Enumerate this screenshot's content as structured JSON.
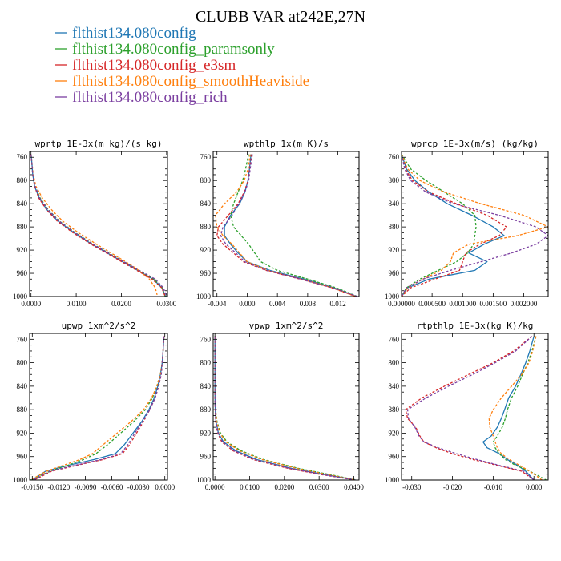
{
  "figure_title": "CLUBB VAR at242E,27N",
  "colors": {
    "blue": "#1f77b4",
    "green": "#2ca02c",
    "red": "#d62728",
    "orange": "#ff7f0e",
    "purple": "#7b3fa0"
  },
  "chart_data": [
    {
      "type": "line",
      "title": "wprtp  1E-3x(m kg)/(s kg)",
      "x_ticks": [
        "0.0000",
        "0.0100",
        "0.0200",
        "0.0300"
      ],
      "x_tick_values": [
        0.0,
        0.01,
        0.02,
        0.03
      ],
      "xlim": [
        -0.0003,
        0.0302
      ],
      "y_ticks": [
        "760",
        "800",
        "840",
        "880",
        "920",
        "960",
        "1000"
      ],
      "ylim": [
        1000,
        750
      ],
      "y": [
        755,
        770,
        790,
        810,
        830,
        850,
        870,
        890,
        910,
        930,
        950,
        970,
        985,
        1000
      ],
      "series": [
        {
          "name": "flthist134.080config",
          "color": "blue",
          "dash": "solid",
          "values": [
            0.0,
            0.0002,
            0.0004,
            0.0008,
            0.0018,
            0.0035,
            0.006,
            0.0095,
            0.0135,
            0.018,
            0.0225,
            0.027,
            0.029,
            0.0298
          ]
        },
        {
          "name": "flthist134.080config_paramsonly",
          "color": "green",
          "dash": "dashed",
          "values": [
            0.0,
            0.0002,
            0.0004,
            0.0009,
            0.002,
            0.0038,
            0.0063,
            0.0098,
            0.0138,
            0.0183,
            0.0228,
            0.0272,
            0.029,
            0.0297
          ]
        },
        {
          "name": "flthist134.080config_e3sm",
          "color": "red",
          "dash": "dashed",
          "values": [
            0.0,
            0.0002,
            0.0004,
            0.0008,
            0.0017,
            0.0034,
            0.0058,
            0.0093,
            0.0133,
            0.0178,
            0.0223,
            0.0268,
            0.0289,
            0.0297
          ]
        },
        {
          "name": "flthist134.080config_smoothHeaviside",
          "color": "orange",
          "dash": "dashed",
          "values": [
            0.0,
            0.0002,
            0.0005,
            0.0011,
            0.0025,
            0.0045,
            0.007,
            0.0105,
            0.0145,
            0.0188,
            0.023,
            0.0262,
            0.0275,
            0.028
          ]
        },
        {
          "name": "flthist134.080config_rich",
          "color": "purple",
          "dash": "dashed",
          "values": [
            0.0,
            0.0002,
            0.0004,
            0.0009,
            0.0019,
            0.0037,
            0.0062,
            0.0097,
            0.0137,
            0.0182,
            0.0228,
            0.0275,
            0.0293,
            0.03
          ]
        }
      ]
    },
    {
      "type": "line",
      "title": "wpthlp  1x(m K)/s",
      "x_ticks": [
        "-0.004",
        "0.000",
        "0.004",
        "0.008",
        "0.012"
      ],
      "x_tick_values": [
        -0.004,
        0.0,
        0.004,
        0.008,
        0.012
      ],
      "xlim": [
        -0.0045,
        0.0148
      ],
      "y_ticks": [
        "760",
        "800",
        "840",
        "880",
        "920",
        "960",
        "1000"
      ],
      "ylim": [
        1000,
        750
      ],
      "y": [
        755,
        780,
        800,
        820,
        840,
        860,
        880,
        895,
        910,
        925,
        940,
        955,
        970,
        985,
        1000
      ],
      "series": [
        {
          "name": "flthist134.080config",
          "color": "blue",
          "dash": "solid",
          "values": [
            0.0005,
            0.0003,
            0.0001,
            -0.0003,
            -0.001,
            -0.0022,
            -0.003,
            -0.003,
            -0.0022,
            -0.0012,
            0.0,
            0.003,
            0.0075,
            0.0115,
            0.0145
          ]
        },
        {
          "name": "flthist134.080config_paramsonly",
          "color": "green",
          "dash": "dashed",
          "values": [
            0.0002,
            -0.0002,
            -0.0006,
            -0.0012,
            -0.0018,
            -0.0022,
            -0.0018,
            -0.0008,
            0.0002,
            0.001,
            0.0018,
            0.004,
            0.008,
            0.0118,
            0.0146
          ]
        },
        {
          "name": "flthist134.080config_e3sm",
          "color": "red",
          "dash": "dashed",
          "values": [
            0.0006,
            0.0003,
            0.0001,
            -0.0004,
            -0.0012,
            -0.0025,
            -0.0038,
            -0.004,
            -0.0032,
            -0.0018,
            -0.0005,
            0.0025,
            0.007,
            0.0112,
            0.0144
          ]
        },
        {
          "name": "flthist134.080config_smoothHeaviside",
          "color": "orange",
          "dash": "dashed",
          "values": [
            0.0004,
            0.0001,
            -0.0004,
            -0.0014,
            -0.003,
            -0.0042,
            -0.004,
            -0.0032,
            -0.002,
            -0.001,
            0.0,
            0.0028,
            0.0072,
            0.0113,
            0.0144
          ]
        },
        {
          "name": "flthist134.080config_rich",
          "color": "purple",
          "dash": "dashed",
          "values": [
            0.0007,
            0.0004,
            0.0002,
            -0.0003,
            -0.0011,
            -0.002,
            -0.0032,
            -0.0035,
            -0.0028,
            -0.0015,
            -0.0003,
            0.0026,
            0.0071,
            0.0113,
            0.0146
          ]
        }
      ]
    },
    {
      "type": "line",
      "title": "wprcp  1E-3x(m/s) (kg/kg)",
      "x_ticks": [
        "0.000000",
        "0.000500",
        "0.001000",
        "0.001500",
        "0.002000"
      ],
      "x_tick_values": [
        0.0,
        0.0005,
        0.001,
        0.0015,
        0.002
      ],
      "xlim": [
        0.0,
        0.0024
      ],
      "y_ticks": [
        "760",
        "800",
        "840",
        "880",
        "920",
        "960",
        "1000"
      ],
      "ylim": [
        1000,
        750
      ],
      "y": [
        755,
        780,
        800,
        820,
        840,
        860,
        880,
        895,
        910,
        925,
        940,
        955,
        970,
        985,
        1000
      ],
      "series": [
        {
          "name": "flthist134.080config",
          "color": "blue",
          "dash": "solid",
          "values": [
            0.0,
            8e-05,
            0.00022,
            0.00045,
            0.00075,
            0.00115,
            0.0015,
            0.00168,
            0.00135,
            0.0011,
            0.0014,
            0.0012,
            0.00045,
            0.0001,
            0.0
          ]
        },
        {
          "name": "flthist134.080config_paramsonly",
          "color": "green",
          "dash": "dashed",
          "values": [
            0.0,
            0.00015,
            0.0004,
            0.0007,
            0.001,
            0.0012,
            0.00122,
            0.0012,
            0.00118,
            0.00108,
            0.0009,
            0.0006,
            0.0003,
            8e-05,
            0.0
          ]
        },
        {
          "name": "flthist134.080config_e3sm",
          "color": "red",
          "dash": "dashed",
          "values": [
            0.0,
            6e-05,
            0.00018,
            0.00045,
            0.0009,
            0.0014,
            0.00172,
            0.0016,
            0.00128,
            0.00105,
            0.001,
            0.00095,
            0.00055,
            0.00015,
            0.0
          ]
        },
        {
          "name": "flthist134.080config_smoothHeaviside",
          "color": "orange",
          "dash": "dashed",
          "values": [
            0.0,
            0.0001,
            0.0003,
            0.0007,
            0.0013,
            0.002,
            0.0024,
            0.0019,
            0.0011,
            0.00085,
            0.0008,
            0.00065,
            0.00035,
            0.0001,
            0.0
          ]
        },
        {
          "name": "flthist134.080config_rich",
          "color": "purple",
          "dash": "dashed",
          "values": [
            0.0,
            5e-05,
            0.00015,
            0.0004,
            0.00085,
            0.0016,
            0.0022,
            0.0024,
            0.0022,
            0.0018,
            0.0013,
            0.0008,
            0.00035,
            8e-05,
            0.0
          ]
        }
      ]
    },
    {
      "type": "line",
      "title": "upwp  1xm^2/s^2",
      "x_ticks": [
        "-0.0150",
        "-0.0120",
        "-0.0090",
        "-0.0060",
        "-0.0030",
        "0.0000"
      ],
      "x_tick_values": [
        -0.015,
        -0.012,
        -0.009,
        -0.006,
        -0.003,
        0.0
      ],
      "xlim": [
        -0.0153,
        0.0003
      ],
      "y_ticks": [
        "760",
        "800",
        "840",
        "880",
        "920",
        "960",
        "1000"
      ],
      "ylim": [
        1000,
        750
      ],
      "y": [
        755,
        780,
        800,
        820,
        840,
        860,
        880,
        900,
        920,
        940,
        955,
        965,
        975,
        985,
        1000
      ],
      "series": [
        {
          "name": "flthist134.080config",
          "color": "blue",
          "dash": "solid",
          "values": [
            -0.0001,
            -0.0002,
            -0.0003,
            -0.0005,
            -0.0008,
            -0.0012,
            -0.0018,
            -0.0026,
            -0.0036,
            -0.0046,
            -0.0056,
            -0.008,
            -0.011,
            -0.0135,
            -0.015
          ]
        },
        {
          "name": "flthist134.080config_paramsonly",
          "color": "green",
          "dash": "dashed",
          "values": [
            -0.0001,
            -0.0002,
            -0.0003,
            -0.0005,
            -0.0009,
            -0.0014,
            -0.0022,
            -0.0035,
            -0.005,
            -0.0065,
            -0.0078,
            -0.0092,
            -0.011,
            -0.013,
            -0.0152
          ]
        },
        {
          "name": "flthist134.080config_e3sm",
          "color": "red",
          "dash": "dashed",
          "values": [
            -0.0001,
            -0.0002,
            -0.0003,
            -0.0004,
            -0.0007,
            -0.0011,
            -0.0017,
            -0.0024,
            -0.0032,
            -0.004,
            -0.0048,
            -0.007,
            -0.01,
            -0.0128,
            -0.0148
          ]
        },
        {
          "name": "flthist134.080config_smoothHeaviside",
          "color": "orange",
          "dash": "dashed",
          "values": [
            -0.0001,
            -0.0002,
            -0.0003,
            -0.0005,
            -0.0009,
            -0.0015,
            -0.0024,
            -0.0038,
            -0.0054,
            -0.007,
            -0.0082,
            -0.0096,
            -0.0115,
            -0.0134,
            -0.0152
          ]
        },
        {
          "name": "flthist134.080config_rich",
          "color": "purple",
          "dash": "dashed",
          "values": [
            -0.0001,
            -0.0002,
            -0.0003,
            -0.0004,
            -0.0007,
            -0.0011,
            -0.0017,
            -0.0025,
            -0.0034,
            -0.0042,
            -0.005,
            -0.0072,
            -0.0102,
            -0.013,
            -0.0149
          ]
        }
      ]
    },
    {
      "type": "line",
      "title": "vpwp  1xm^2/s^2",
      "x_ticks": [
        "0.0000",
        "0.0100",
        "0.0200",
        "0.0300",
        "0.0400"
      ],
      "x_tick_values": [
        0.0,
        0.01,
        0.02,
        0.03,
        0.04
      ],
      "xlim": [
        -0.0005,
        0.0415
      ],
      "y_ticks": [
        "760",
        "800",
        "840",
        "880",
        "920",
        "960",
        "1000"
      ],
      "ylim": [
        1000,
        750
      ],
      "y": [
        755,
        800,
        850,
        880,
        900,
        920,
        935,
        950,
        965,
        980,
        990,
        1000
      ],
      "series": [
        {
          "name": "flthist134.080config",
          "color": "blue",
          "dash": "solid",
          "values": [
            0.0,
            0.0,
            0.0,
            0.0001,
            0.0003,
            0.001,
            0.0025,
            0.006,
            0.012,
            0.022,
            0.031,
            0.0405
          ]
        },
        {
          "name": "flthist134.080config_paramsonly",
          "color": "green",
          "dash": "dashed",
          "values": [
            0.0,
            0.0,
            0.0,
            0.0002,
            0.0006,
            0.0016,
            0.0035,
            0.0075,
            0.014,
            0.024,
            0.0325,
            0.0408
          ]
        },
        {
          "name": "flthist134.080config_e3sm",
          "color": "red",
          "dash": "dashed",
          "values": [
            0.0,
            0.0,
            0.0,
            0.0001,
            0.0002,
            0.0008,
            0.002,
            0.0052,
            0.011,
            0.021,
            0.03,
            0.0402
          ]
        },
        {
          "name": "flthist134.080config_smoothHeaviside",
          "color": "orange",
          "dash": "dashed",
          "values": [
            0.0,
            0.0,
            0.0,
            0.0002,
            0.0005,
            0.0014,
            0.0032,
            0.007,
            0.0135,
            0.0235,
            0.032,
            0.0406
          ]
        },
        {
          "name": "flthist134.080config_rich",
          "color": "purple",
          "dash": "dashed",
          "values": [
            0.0,
            0.0,
            0.0,
            0.0001,
            0.0003,
            0.0009,
            0.0022,
            0.0055,
            0.0115,
            0.0215,
            0.0305,
            0.0404
          ]
        }
      ]
    },
    {
      "type": "line",
      "title": "rtpthlp  1E-3x(kg K)/kg",
      "x_ticks": [
        "-0.030",
        "-0.020",
        "-0.010",
        "0.000"
      ],
      "x_tick_values": [
        -0.03,
        -0.02,
        -0.01,
        0.0
      ],
      "xlim": [
        -0.0325,
        0.0035
      ],
      "y_ticks": [
        "760",
        "800",
        "840",
        "880",
        "920",
        "960",
        "1000"
      ],
      "ylim": [
        1000,
        750
      ],
      "y": [
        755,
        780,
        800,
        820,
        840,
        860,
        880,
        895,
        910,
        925,
        935,
        945,
        955,
        965,
        975,
        985,
        1000
      ],
      "series": [
        {
          "name": "flthist134.080config",
          "color": "blue",
          "dash": "solid",
          "values": [
            0.0,
            -0.001,
            -0.002,
            -0.0032,
            -0.0045,
            -0.0062,
            -0.0072,
            -0.008,
            -0.009,
            -0.0105,
            -0.0125,
            -0.0115,
            -0.0085,
            -0.0065,
            -0.004,
            -0.002,
            0.0
          ]
        },
        {
          "name": "flthist134.080config_paramsonly",
          "color": "green",
          "dash": "dashed",
          "values": [
            0.0005,
            -0.0005,
            -0.0015,
            -0.0028,
            -0.004,
            -0.0055,
            -0.0065,
            -0.007,
            -0.0078,
            -0.009,
            -0.01,
            -0.0095,
            -0.0085,
            -0.007,
            -0.0045,
            -0.001,
            0.003
          ]
        },
        {
          "name": "flthist134.080config_e3sm",
          "color": "red",
          "dash": "dashed",
          "values": [
            -0.0005,
            -0.005,
            -0.01,
            -0.016,
            -0.022,
            -0.0275,
            -0.0315,
            -0.031,
            -0.029,
            -0.028,
            -0.027,
            -0.024,
            -0.02,
            -0.015,
            -0.009,
            -0.003,
            0.0
          ]
        },
        {
          "name": "flthist134.080config_smoothHeaviside",
          "color": "orange",
          "dash": "dashed",
          "values": [
            0.0005,
            -0.0003,
            -0.0012,
            -0.003,
            -0.0055,
            -0.008,
            -0.01,
            -0.011,
            -0.0108,
            -0.01,
            -0.0095,
            -0.009,
            -0.008,
            -0.006,
            -0.0035,
            -0.001,
            0.002
          ]
        },
        {
          "name": "flthist134.080config_rich",
          "color": "purple",
          "dash": "dashed",
          "values": [
            -0.0005,
            -0.0045,
            -0.0095,
            -0.015,
            -0.021,
            -0.0265,
            -0.031,
            -0.0308,
            -0.0292,
            -0.0282,
            -0.027,
            -0.0235,
            -0.019,
            -0.014,
            -0.0085,
            -0.0025,
            0.0
          ]
        }
      ]
    }
  ]
}
